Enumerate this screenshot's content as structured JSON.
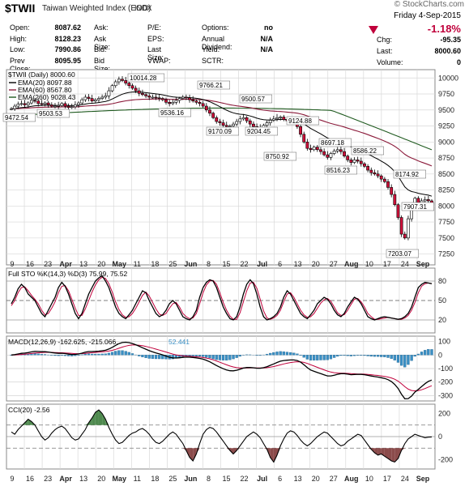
{
  "header": {
    "watermark": "© StockCharts.com",
    "symbol": "$TWII",
    "name": "Taiwan Weighted Index (EOD)",
    "exchange": "INDX",
    "date": "Friday  4-Sep-2015",
    "pct_change": "-1.18%",
    "quote_left": [
      {
        "label": "Open:",
        "value": "8087.62"
      },
      {
        "label": "High:",
        "value": "8128.23"
      },
      {
        "label": "Low:",
        "value": "7990.86"
      },
      {
        "label": "Prev Close:",
        "value": "8095.95"
      }
    ],
    "quote_mid": [
      {
        "label": "Ask:",
        "value": ""
      },
      {
        "label": "Ask Size:",
        "value": ""
      },
      {
        "label": "Bid:",
        "value": ""
      },
      {
        "label": "Bid Size:",
        "value": ""
      }
    ],
    "quote_mid2": [
      {
        "label": "P/E:",
        "value": ""
      },
      {
        "label": "EPS:",
        "value": ""
      },
      {
        "label": "Last Size:",
        "value": ""
      },
      {
        "label": "VWAP:",
        "value": ""
      }
    ],
    "quote_mid3": [
      {
        "label": "Options:",
        "value": "no"
      },
      {
        "label": "Annual Dividend:",
        "value": "N/A"
      },
      {
        "label": "Yield:",
        "value": "N/A"
      },
      {
        "label": "SCTR:",
        "value": ""
      }
    ],
    "quote_right": [
      {
        "label": "Chg:",
        "value": "-95.35"
      },
      {
        "label": "Last:",
        "value": "8000.60"
      },
      {
        "label": "Volume:",
        "value": "0"
      }
    ]
  },
  "colors": {
    "up_fill": "#ffffff",
    "down_fill": "#d0103a",
    "candle_line": "#000000",
    "ema20": "#000000",
    "ema60": "#8b1a3a",
    "ema260": "#1f5a1f",
    "macd_hist": "#3a8fc4",
    "cci_fill_pos": "#4f8a4f",
    "cci_fill_neg": "#8b4b4b",
    "sto_d": "#c0003b",
    "macd_signal": "#c0003b"
  },
  "chart_data": [
    {
      "type": "candlestick",
      "title": "$TWII (Daily) 8000.60",
      "legend": [
        {
          "name": "EMA(20) 8097.88",
          "color": "#000000"
        },
        {
          "name": "EMA(60) 8567.80",
          "color": "#8b1a3a"
        },
        {
          "name": "EMA(260) 9028.43",
          "color": "#1f5a1f"
        }
      ],
      "yticks": [
        7250,
        7500,
        7750,
        8000,
        8250,
        8500,
        8750,
        9000,
        9250,
        9500,
        9750,
        10000
      ],
      "ylim": [
        7080,
        10130
      ],
      "grid": true,
      "xticks": [
        "9",
        "16",
        "23",
        "Apr",
        "13",
        "20",
        "May",
        "11",
        "18",
        "25",
        "Jun",
        "8",
        "15",
        "22",
        "Jul",
        "6",
        "13",
        "20",
        "27",
        "Aug",
        "10",
        "17",
        "24",
        "Sep"
      ],
      "annotations": [
        {
          "text": "10014.28",
          "value": 10014.28
        },
        {
          "text": "9766.21",
          "value": 9766.21
        },
        {
          "text": "9500.57",
          "value": 9500.57
        },
        {
          "text": "9472.54",
          "value": 9472.54
        },
        {
          "text": "9503.53",
          "value": 9503.53
        },
        {
          "text": "9536.16",
          "value": 9536.16
        },
        {
          "text": "9170.09",
          "value": 9170.09
        },
        {
          "text": "9204.45",
          "value": 9204.45
        },
        {
          "text": "9124.88",
          "value": 9124.88
        },
        {
          "text": "8750.92",
          "value": 8750.92
        },
        {
          "text": "8697.18",
          "value": 8697.18
        },
        {
          "text": "8586.22",
          "value": 8586.22
        },
        {
          "text": "8516.23",
          "value": 8516.23
        },
        {
          "text": "8174.92",
          "value": 8174.92
        },
        {
          "text": "7907.31",
          "value": 7907.31
        },
        {
          "text": "7203.07",
          "value": 7203.07
        }
      ],
      "closes": [
        9520,
        9560,
        9590,
        9600,
        9580,
        9610,
        9650,
        9640,
        9600,
        9590,
        9610,
        9580,
        9560,
        9560,
        9570,
        9600,
        9560,
        9540,
        9550,
        9580,
        9610,
        9660,
        9700,
        9680,
        9640,
        9660,
        9680,
        9700,
        9720,
        9800,
        9880,
        9940,
        9980,
        9960,
        9920,
        9880,
        9840,
        9800,
        9760,
        9740,
        9720,
        9700,
        9700,
        9690,
        9680,
        9660,
        9620,
        9600,
        9620,
        9650,
        9680,
        9700,
        9690,
        9660,
        9640,
        9620,
        9600,
        9560,
        9500,
        9450,
        9380,
        9320,
        9300,
        9260,
        9240,
        9250,
        9280,
        9320,
        9360,
        9380,
        9330,
        9280,
        9240,
        9200,
        9220,
        9260,
        9300,
        9340,
        9360,
        9380,
        9390,
        9350,
        9330,
        9320,
        9300,
        9240,
        9120,
        9000,
        8900,
        8880,
        8920,
        8880,
        8850,
        8800,
        8760,
        8820,
        8860,
        8880,
        8850,
        8780,
        8720,
        8680,
        8720,
        8700,
        8660,
        8620,
        8560,
        8520,
        8500,
        8470,
        8420,
        8380,
        8290,
        8180,
        8020,
        7820,
        7560,
        7500,
        7800,
        7980,
        8120,
        8040,
        8080,
        8100,
        8080,
        8000
      ]
    },
    {
      "type": "line",
      "title": "Full STO %K(14,3) %D(3) 75.99, 75.52",
      "series": [
        {
          "name": "%K(14,3)",
          "values": [
            45,
            55,
            68,
            75,
            70,
            60,
            55,
            50,
            40,
            30,
            25,
            35,
            45,
            55,
            70,
            78,
            72,
            60,
            45,
            30,
            22,
            30,
            45,
            60,
            70,
            80,
            85,
            88,
            80,
            70,
            55,
            40,
            30,
            25,
            22,
            28,
            35,
            45,
            55,
            65,
            62,
            50,
            40,
            30,
            25,
            28,
            35,
            45,
            50,
            45,
            35,
            25,
            22,
            20,
            25,
            35,
            55,
            70,
            78,
            82,
            80,
            70,
            55,
            40,
            30,
            22,
            20,
            25,
            40,
            60,
            75,
            82,
            76,
            60,
            40,
            25,
            20,
            22,
            25,
            30,
            40,
            55,
            65,
            60,
            50,
            40,
            30,
            25,
            22,
            28,
            35,
            45,
            50,
            55,
            52,
            45,
            35,
            28,
            25,
            30,
            40,
            48,
            55,
            52,
            45,
            35,
            25,
            22,
            20,
            22,
            24,
            25,
            24,
            23,
            22,
            21,
            22,
            25,
            30,
            40,
            55,
            70,
            75,
            78,
            77,
            76
          ]
        },
        {
          "name": "%D(3)",
          "values": [
            42,
            50,
            62,
            70,
            71,
            65,
            58,
            52,
            45,
            35,
            28,
            30,
            38,
            48,
            62,
            72,
            73,
            65,
            52,
            38,
            27,
            27,
            37,
            50,
            63,
            74,
            82,
            86,
            84,
            76,
            63,
            48,
            36,
            28,
            24,
            25,
            30,
            38,
            48,
            58,
            63,
            57,
            47,
            37,
            29,
            27,
            30,
            38,
            45,
            47,
            40,
            30,
            25,
            22,
            23,
            30,
            45,
            62,
            74,
            80,
            81,
            75,
            62,
            47,
            35,
            26,
            21,
            21,
            31,
            48,
            65,
            77,
            78,
            69,
            52,
            34,
            23,
            21,
            23,
            27,
            35,
            48,
            60,
            62,
            55,
            45,
            35,
            28,
            24,
            25,
            30,
            38,
            46,
            51,
            53,
            49,
            40,
            31,
            27,
            28,
            35,
            44,
            52,
            53,
            48,
            40,
            30,
            25,
            21,
            21,
            22,
            23,
            24,
            23,
            22,
            21,
            21,
            23,
            27,
            35,
            47,
            62,
            72,
            76,
            77,
            76
          ]
        }
      ],
      "yticks": [
        20,
        50,
        80
      ],
      "ylim": [
        0,
        100
      ]
    },
    {
      "type": "line",
      "title": "MACD(12,26,9) -162.625, -215.066, 52.441",
      "series": [
        {
          "name": "MACD",
          "values": []
        },
        {
          "name": "Signal",
          "values": []
        },
        {
          "name": "Histogram",
          "values": []
        }
      ],
      "yticks": [
        -300,
        -200,
        -100,
        0,
        100
      ],
      "ylim": [
        -340,
        140
      ]
    },
    {
      "type": "area",
      "title": "CCI(20) -2.56",
      "series": [
        {
          "name": "CCI(20)",
          "values": [
            40,
            20,
            60,
            90,
            120,
            150,
            130,
            100,
            50,
            0,
            -30,
            -10,
            30,
            60,
            80,
            90,
            70,
            30,
            -10,
            -30,
            -20,
            20,
            60,
            120,
            160,
            210,
            230,
            200,
            150,
            80,
            20,
            -30,
            -60,
            -50,
            -20,
            10,
            30,
            40,
            60,
            70,
            50,
            20,
            -20,
            -50,
            -60,
            -40,
            -10,
            20,
            40,
            20,
            -20,
            -60,
            -120,
            -180,
            -210,
            -150,
            -60,
            20,
            60,
            80,
            70,
            40,
            0,
            -40,
            -80,
            -120,
            -150,
            -120,
            -80,
            -40,
            0,
            20,
            40,
            20,
            -10,
            -60,
            -110,
            -180,
            -220,
            -160,
            -80,
            -20,
            30,
            50,
            40,
            10,
            -30,
            -60,
            -80,
            -60,
            -30,
            0,
            20,
            40,
            30,
            0,
            -30,
            -60,
            -80,
            -70,
            -40,
            -20,
            0,
            20,
            10,
            -30,
            -70,
            -110,
            -140,
            -160,
            -150,
            -170,
            -190,
            -210,
            -220,
            -190,
            -120,
            -60,
            -20,
            0,
            20,
            10,
            0,
            -10,
            -5,
            -2.56
          ]
        }
      ],
      "yticks": [
        -200,
        0,
        200
      ],
      "ylim": [
        -280,
        280
      ]
    }
  ]
}
